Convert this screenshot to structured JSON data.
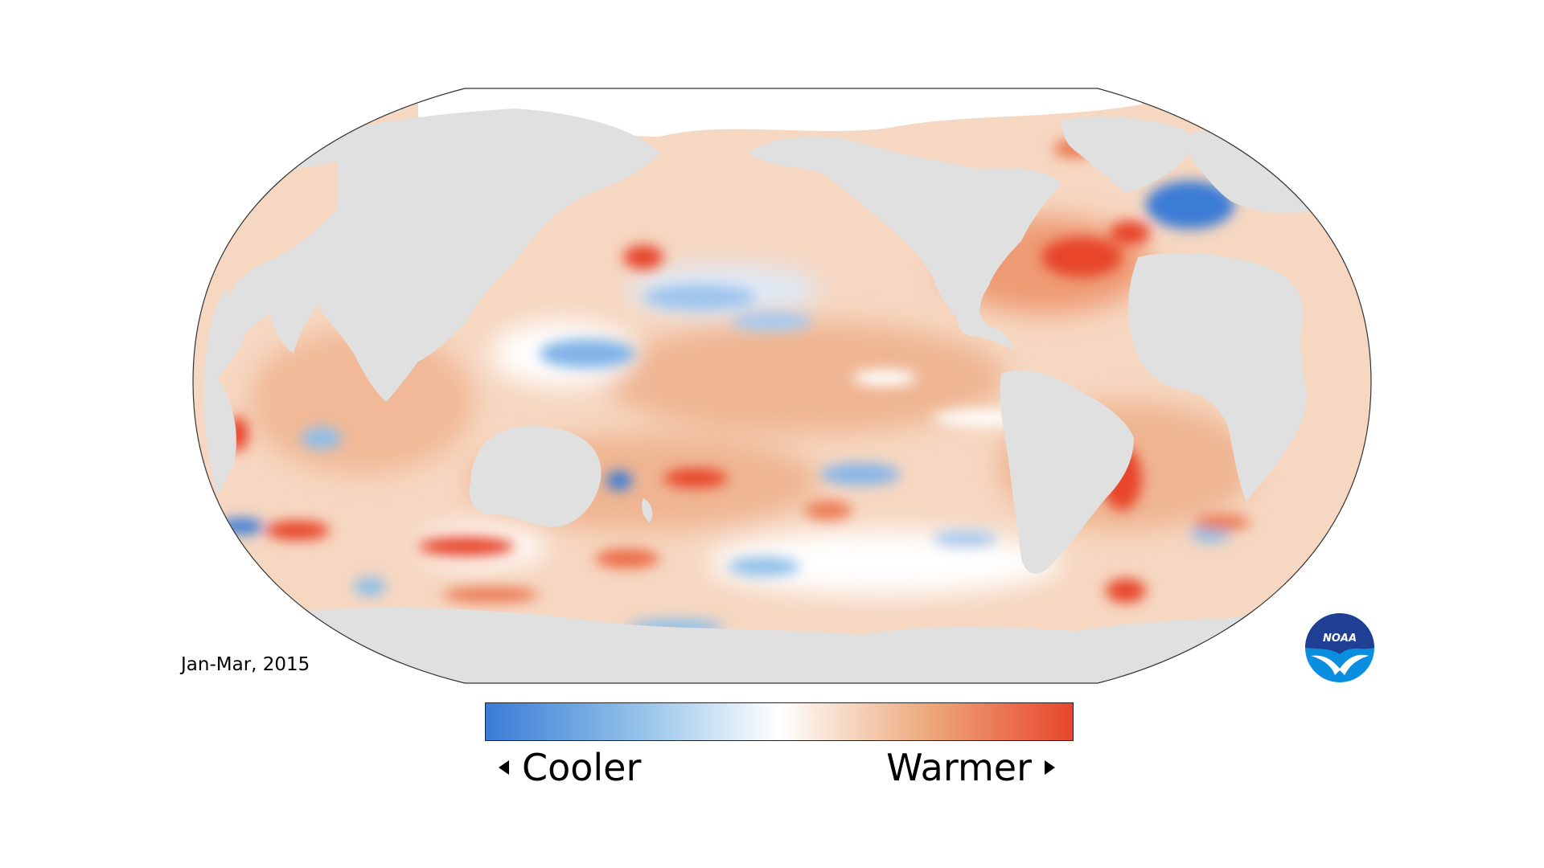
{
  "map": {
    "period_label": "Jan-Mar, 2015",
    "projection": "robinson",
    "land_color": "#e0e0e0",
    "ice_color": "#ffffff"
  },
  "legend": {
    "cooler_label": "Cooler",
    "warmer_label": "Warmer",
    "left_arrow_icon": "triangle-left-icon",
    "right_arrow_icon": "triangle-right-icon",
    "gradient_colors": [
      "#3a7bd5",
      "#8fbfe9",
      "#ffffff",
      "#edaa7d",
      "#e8452c"
    ]
  },
  "logo": {
    "text": "NOAA",
    "icon": "noaa-logo-icon",
    "colors": [
      "#1f3f94",
      "#0a8fe0",
      "#ffffff"
    ]
  }
}
